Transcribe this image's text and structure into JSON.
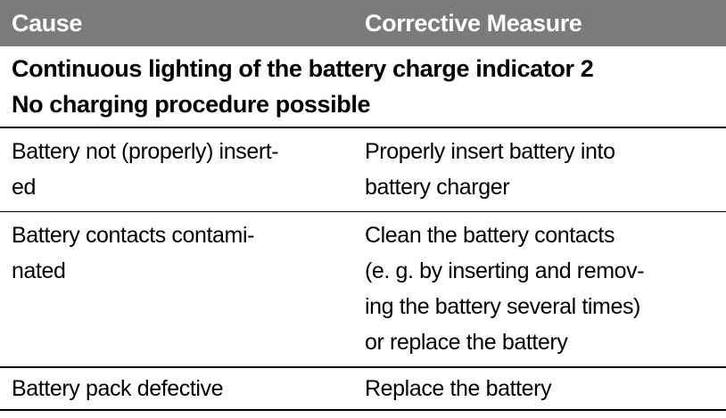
{
  "table": {
    "columns": [
      {
        "label": "Cause"
      },
      {
        "label": "Corrective Measure"
      }
    ],
    "section_header_lines": [
      "Continuous lighting of the battery charge indicator 2",
      "No charging procedure possible"
    ],
    "rows": [
      {
        "cause_lines": [
          "Battery not (properly) insert-",
          "ed"
        ],
        "measure_lines": [
          "Properly insert battery into",
          "battery charger"
        ]
      },
      {
        "cause_lines": [
          "Battery contacts contami-",
          "nated"
        ],
        "measure_lines": [
          "Clean the battery contacts",
          "(e. g. by inserting and remov-",
          "ing the battery several times)",
          "or replace the battery"
        ]
      },
      {
        "cause_lines": [
          "Battery pack defective"
        ],
        "measure_lines": [
          "Replace the battery"
        ]
      }
    ],
    "colors": {
      "header_background": "#7b7b7b",
      "header_text": "#ffffff",
      "body_text": "#000000",
      "rule": "#000000"
    }
  }
}
